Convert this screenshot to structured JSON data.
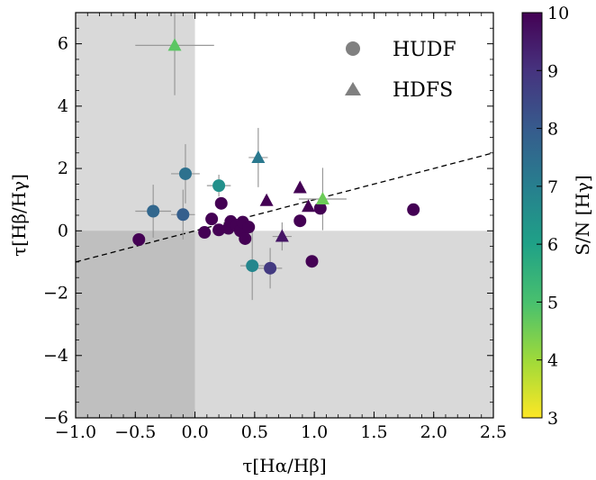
{
  "chart_data": {
    "type": "scatter",
    "xlabel": "τ[Hα/Hβ]",
    "ylabel": "τ[Hβ/Hγ]",
    "xlim": [
      -1.0,
      2.5
    ],
    "ylim": [
      -6,
      7
    ],
    "x_ticks": [
      -1.0,
      -0.5,
      0.0,
      0.5,
      1.0,
      1.5,
      2.0,
      2.5
    ],
    "x_tick_labels": [
      "−1.0",
      "−0.5",
      "0.0",
      "0.5",
      "1.0",
      "1.5",
      "2.0",
      "2.5"
    ],
    "y_ticks": [
      -6,
      -4,
      -2,
      0,
      2,
      4,
      6
    ],
    "y_tick_labels": [
      "−6",
      "−4",
      "−2",
      "0",
      "2",
      "4",
      "6"
    ],
    "grid": false,
    "shaded_regions": "x < 0 or y < 0 shaded light gray; x < 0 and y < 0 shaded darker gray",
    "reference_line": {
      "style": "dashed",
      "slope": 1,
      "intercept": 0
    },
    "legend": {
      "position": "top-right",
      "entries": [
        {
          "label": "HUDF",
          "marker": "circle"
        },
        {
          "label": "HDFS",
          "marker": "triangle"
        }
      ]
    },
    "colorbar": {
      "label": "S/N [Hγ]",
      "min": 3,
      "max": 10,
      "ticks": [
        3,
        4,
        5,
        6,
        7,
        8,
        9,
        10
      ],
      "tick_labels": [
        "3",
        "4",
        "5",
        "6",
        "7",
        "8",
        "9",
        "10"
      ],
      "colormap": "viridis (reversed: 3 = yellow, 10 = dark purple)"
    },
    "series": [
      {
        "marker": "circle",
        "points": [
          {
            "x": -0.47,
            "y": -0.28,
            "sn": 10
          },
          {
            "x": -0.35,
            "y": 0.63,
            "sn": 7.7,
            "xerr": 0.15,
            "yerr": 0.85
          },
          {
            "x": -0.1,
            "y": 0.52,
            "sn": 7.9,
            "xerr": 0.1,
            "yerr": 0.8
          },
          {
            "x": -0.08,
            "y": 1.83,
            "sn": 7.4,
            "xerr": 0.12,
            "yerr": 0.95
          },
          {
            "x": 0.08,
            "y": -0.05,
            "sn": 10
          },
          {
            "x": 0.14,
            "y": 0.38,
            "sn": 10
          },
          {
            "x": 0.2,
            "y": 1.45,
            "sn": 6.5,
            "xerr": 0.1,
            "yerr": 0.35
          },
          {
            "x": 0.2,
            "y": 0.03,
            "sn": 10
          },
          {
            "x": 0.22,
            "y": 0.88,
            "sn": 10
          },
          {
            "x": 0.28,
            "y": 0.08,
            "sn": 10
          },
          {
            "x": 0.3,
            "y": 0.3,
            "sn": 10
          },
          {
            "x": 0.35,
            "y": 0.18,
            "sn": 10
          },
          {
            "x": 0.38,
            "y": 0.0,
            "sn": 10
          },
          {
            "x": 0.4,
            "y": 0.28,
            "sn": 10
          },
          {
            "x": 0.42,
            "y": -0.25,
            "sn": 10
          },
          {
            "x": 0.45,
            "y": 0.12,
            "sn": 10
          },
          {
            "x": 0.48,
            "y": -1.12,
            "sn": 6.8,
            "xerr": 0.1,
            "yerr": 1.1
          },
          {
            "x": 0.63,
            "y": -1.2,
            "sn": 8.8,
            "xerr": 0.1,
            "yerr": 0.65
          },
          {
            "x": 0.88,
            "y": 0.32,
            "sn": 10
          },
          {
            "x": 0.98,
            "y": -0.98,
            "sn": 10
          },
          {
            "x": 1.05,
            "y": 0.72,
            "sn": 10
          },
          {
            "x": 1.83,
            "y": 0.68,
            "sn": 10
          }
        ]
      },
      {
        "marker": "triangle",
        "points": [
          {
            "x": -0.17,
            "y": 5.95,
            "sn": 4.8,
            "xerr": 0.33,
            "yerr": 1.6
          },
          {
            "x": 0.53,
            "y": 2.35,
            "sn": 7.2,
            "xerr": 0.08,
            "yerr": 0.95
          },
          {
            "x": 0.6,
            "y": 0.97,
            "sn": 10
          },
          {
            "x": 0.73,
            "y": -0.18,
            "sn": 9.6,
            "xerr": 0.08,
            "yerr": 0.45
          },
          {
            "x": 0.88,
            "y": 1.38,
            "sn": 10
          },
          {
            "x": 0.95,
            "y": 0.78,
            "sn": 10
          },
          {
            "x": 1.07,
            "y": 1.02,
            "sn": 4.6,
            "xerr": 0.2,
            "yerr": 1.0
          }
        ]
      }
    ]
  }
}
